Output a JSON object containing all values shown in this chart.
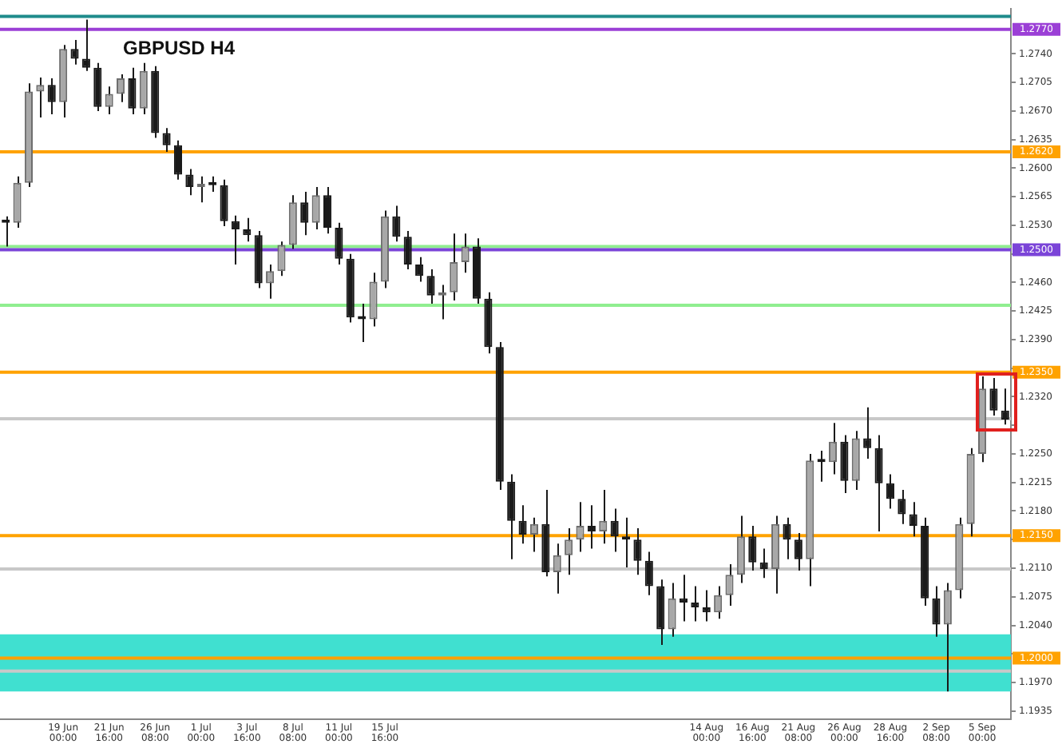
{
  "chart_data": {
    "type": "candlestick",
    "title": "GBPUSD H4",
    "categories": [
      null,
      null,
      null,
      null,
      null,
      "19 Jun 00:00",
      null,
      null,
      null,
      "21 Jun 16:00",
      null,
      null,
      null,
      "26 Jun 08:00",
      null,
      null,
      null,
      "1 Jul 00:00",
      null,
      null,
      null,
      "3 Jul 16:00",
      null,
      null,
      null,
      "8 Jul 08:00",
      null,
      null,
      null,
      "11 Jul 00:00",
      null,
      null,
      null,
      "15 Jul 16:00",
      null,
      null,
      null,
      null,
      null,
      null,
      null,
      null,
      null,
      null,
      null,
      null,
      null,
      null,
      null,
      null,
      null,
      null,
      null,
      null,
      null,
      null,
      null,
      null,
      null,
      null,
      null,
      "14 Aug 00:00",
      null,
      null,
      null,
      "16 Aug 16:00",
      null,
      null,
      null,
      "21 Aug 08:00",
      null,
      null,
      null,
      "26 Aug 00:00",
      null,
      null,
      null,
      "28 Aug 16:00",
      null,
      null,
      null,
      "2 Sep 08:00",
      null,
      null,
      null,
      "5 Sep 00:00",
      null,
      null
    ],
    "ohlc": [
      [
        1.2535,
        1.2541,
        1.2504,
        1.2533
      ],
      [
        1.2533,
        1.259,
        1.2527,
        1.2582
      ],
      [
        1.2582,
        1.2704,
        1.2577,
        1.2694
      ],
      [
        1.2694,
        1.2711,
        1.2662,
        1.2702
      ],
      [
        1.2702,
        1.271,
        1.2666,
        1.2681
      ],
      [
        1.2681,
        1.2751,
        1.2662,
        1.2746
      ],
      [
        1.2746,
        1.2757,
        1.2727,
        1.2734
      ],
      [
        1.2734,
        1.2782,
        1.2719,
        1.2723
      ],
      [
        1.2723,
        1.2729,
        1.267,
        1.2675
      ],
      [
        1.2675,
        1.27,
        1.2666,
        1.2691
      ],
      [
        1.2691,
        1.2715,
        1.2681,
        1.271
      ],
      [
        1.271,
        1.2723,
        1.2666,
        1.2673
      ],
      [
        1.2673,
        1.2729,
        1.2666,
        1.2719
      ],
      [
        1.2719,
        1.2725,
        1.2637,
        1.2643
      ],
      [
        1.2643,
        1.2649,
        1.262,
        1.2628
      ],
      [
        1.2628,
        1.2634,
        1.2586,
        1.2592
      ],
      [
        1.2592,
        1.2599,
        1.2567,
        1.2577
      ],
      [
        1.2577,
        1.259,
        1.2558,
        1.258
      ],
      [
        1.258,
        1.259,
        1.2571,
        1.2579
      ],
      [
        1.2579,
        1.2586,
        1.2529,
        1.2535
      ],
      [
        1.2535,
        1.2542,
        1.2482,
        1.2525
      ],
      [
        1.2525,
        1.2539,
        1.251,
        1.2518
      ],
      [
        1.2518,
        1.2523,
        1.2453,
        1.2459
      ],
      [
        1.2459,
        1.2482,
        1.244,
        1.2474
      ],
      [
        1.2474,
        1.251,
        1.2468,
        1.2506
      ],
      [
        1.2506,
        1.2567,
        1.2501,
        1.2558
      ],
      [
        1.2558,
        1.2571,
        1.2518,
        1.2533
      ],
      [
        1.2533,
        1.2577,
        1.2525,
        1.2567
      ],
      [
        1.2567,
        1.2577,
        1.252,
        1.2527
      ],
      [
        1.2527,
        1.2533,
        1.2482,
        1.2489
      ],
      [
        1.2489,
        1.2495,
        1.2411,
        1.2417
      ],
      [
        1.2417,
        1.2434,
        1.2387,
        1.2415
      ],
      [
        1.2415,
        1.2472,
        1.2406,
        1.2461
      ],
      [
        1.2461,
        1.2548,
        1.2453,
        1.2541
      ],
      [
        1.2541,
        1.2554,
        1.251,
        1.2516
      ],
      [
        1.2516,
        1.2523,
        1.2476,
        1.2482
      ],
      [
        1.2482,
        1.2491,
        1.2461,
        1.2468
      ],
      [
        1.2468,
        1.2476,
        1.2434,
        1.2444
      ],
      [
        1.2444,
        1.2457,
        1.2415,
        1.2448
      ],
      [
        1.2448,
        1.252,
        1.2438,
        1.2485
      ],
      [
        1.2485,
        1.252,
        1.2472,
        1.2504
      ],
      [
        1.2504,
        1.2514,
        1.2434,
        1.244
      ],
      [
        1.244,
        1.2448,
        1.2373,
        1.2381
      ],
      [
        1.2381,
        1.2387,
        1.2206,
        1.2216
      ],
      [
        1.2216,
        1.2225,
        1.2121,
        1.2168
      ],
      [
        1.2168,
        1.2187,
        1.214,
        1.2151
      ],
      [
        1.2151,
        1.2172,
        1.213,
        1.2164
      ],
      [
        1.2164,
        1.2206,
        1.21,
        1.2105
      ],
      [
        1.2105,
        1.214,
        1.2079,
        1.2126
      ],
      [
        1.2126,
        1.2159,
        1.2102,
        1.2145
      ],
      [
        1.2145,
        1.2191,
        1.213,
        1.2162
      ],
      [
        1.2162,
        1.2187,
        1.2134,
        1.2155
      ],
      [
        1.2155,
        1.2206,
        1.214,
        1.2168
      ],
      [
        1.2168,
        1.2183,
        1.213,
        1.2149
      ],
      [
        1.2149,
        1.2172,
        1.2111,
        1.2145
      ],
      [
        1.2145,
        1.2159,
        1.2102,
        1.2119
      ],
      [
        1.2119,
        1.213,
        1.2077,
        1.2088
      ],
      [
        1.2088,
        1.2096,
        1.2016,
        1.2035
      ],
      [
        1.2035,
        1.2092,
        1.2026,
        1.2073
      ],
      [
        1.2073,
        1.2102,
        1.2045,
        1.2068
      ],
      [
        1.2068,
        1.2088,
        1.2045,
        1.2062
      ],
      [
        1.2062,
        1.2083,
        1.2045,
        1.2056
      ],
      [
        1.2056,
        1.2088,
        1.2048,
        1.2077
      ],
      [
        1.2077,
        1.2115,
        1.2064,
        1.2102
      ],
      [
        1.2102,
        1.2174,
        1.2092,
        1.2149
      ],
      [
        1.2149,
        1.2162,
        1.2107,
        1.2117
      ],
      [
        1.2117,
        1.2134,
        1.2098,
        1.2109
      ],
      [
        1.2109,
        1.2174,
        1.2079,
        1.2164
      ],
      [
        1.2164,
        1.2172,
        1.2121,
        1.2145
      ],
      [
        1.2145,
        1.2153,
        1.2107,
        1.2121
      ],
      [
        1.2121,
        1.225,
        1.2088,
        1.2242
      ],
      [
        1.2242,
        1.2254,
        1.2216,
        1.224
      ],
      [
        1.224,
        1.2288,
        1.2225,
        1.2265
      ],
      [
        1.2265,
        1.2273,
        1.2202,
        1.2217
      ],
      [
        1.2217,
        1.2278,
        1.2206,
        1.2269
      ],
      [
        1.2269,
        1.2307,
        1.2244,
        1.2257
      ],
      [
        1.2257,
        1.2273,
        1.2155,
        1.2214
      ],
      [
        1.2214,
        1.2225,
        1.2183,
        1.2195
      ],
      [
        1.2195,
        1.2206,
        1.2164,
        1.2176
      ],
      [
        1.2176,
        1.2191,
        1.2149,
        1.2162
      ],
      [
        1.2162,
        1.2172,
        1.2064,
        1.2073
      ],
      [
        1.2073,
        1.2088,
        1.2026,
        1.2041
      ],
      [
        1.2041,
        1.2092,
        1.1959,
        1.2083
      ],
      [
        1.2083,
        1.2172,
        1.2073,
        1.2164
      ],
      [
        1.2164,
        1.2257,
        1.2149,
        1.225
      ],
      [
        1.225,
        1.2345,
        1.224,
        1.233
      ],
      [
        1.233,
        1.2343,
        1.2297,
        1.2303
      ],
      [
        1.2303,
        1.233,
        1.2286,
        1.2292
      ]
    ],
    "ylim": [
      1.1925,
      1.2795
    ],
    "yticks": [
      1.1935,
      {
        "value": 1.197,
        "label": "1.1970"
      },
      {
        "value": 1.2005,
        "label": null
      },
      {
        "value": 1.204,
        "label": "1.2040"
      },
      {
        "value": 1.2075,
        "label": "1.2075"
      },
      {
        "value": 1.211,
        "label": "1.2110"
      },
      {
        "value": 1.2145,
        "label": null
      },
      {
        "value": 1.218,
        "label": "1.2180"
      },
      1.2215,
      {
        "value": 1.225,
        "label": "1.2250"
      },
      {
        "value": 1.2285,
        "label": null
      },
      {
        "value": 1.232,
        "label": "1.2320"
      },
      {
        "value": 1.2355,
        "label": null
      },
      {
        "value": 1.239,
        "label": "1.2390"
      },
      1.2425,
      {
        "value": 1.246,
        "label": "1.2460"
      },
      {
        "value": 1.2495,
        "label": null
      },
      {
        "value": 1.253,
        "label": "1.2530"
      },
      1.2565,
      {
        "value": 1.26,
        "label": "1.2600"
      },
      1.2635,
      {
        "value": 1.267,
        "label": "1.2670"
      },
      1.2705,
      {
        "value": 1.274,
        "label": "1.2740"
      }
    ],
    "ref_lines": [
      {
        "axis": "y",
        "value": 1.2786,
        "color": "#1e8b8b"
      },
      {
        "axis": "y",
        "value": 1.277,
        "label": "1.2770",
        "color": "#9b3fd6"
      },
      {
        "axis": "y",
        "value": 1.262,
        "label": "1.2620",
        "color": "#ffa200"
      },
      {
        "axis": "y",
        "value": 1.2504,
        "color": "#90ee90"
      },
      {
        "axis": "y",
        "value": 1.25,
        "label": "1.2500",
        "color": "#7b44d8"
      },
      {
        "axis": "y",
        "value": 1.2432,
        "color": "#90ee90"
      },
      {
        "axis": "y",
        "value": 1.235,
        "label": "1.2350",
        "color": "#ffa200"
      },
      {
        "axis": "y",
        "value": 1.2293,
        "color": "#c8c8c8"
      },
      {
        "axis": "y",
        "value": 1.215,
        "label": "1.2150",
        "color": "#ffa200"
      },
      {
        "axis": "y",
        "value": 1.2109,
        "color": "#c8c8c8"
      },
      {
        "axis": "y",
        "value": 1.2,
        "label": "1.2000",
        "color": "#ffa200"
      },
      {
        "axis": "y",
        "value": 1.1984,
        "color": "#c8c8c8"
      }
    ],
    "bands": [
      {
        "axis": "y",
        "from": 1.1959,
        "to": 1.2029,
        "color": "#40e0d0"
      }
    ],
    "grid": false,
    "legend": false
  }
}
